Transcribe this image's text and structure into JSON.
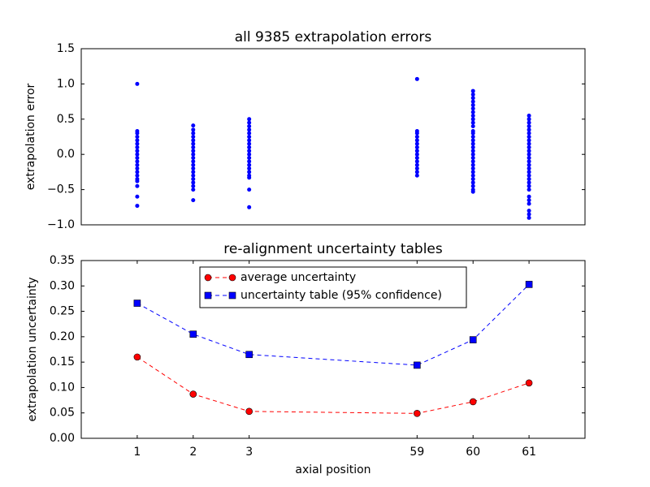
{
  "chart_data": [
    {
      "type": "scatter",
      "title": "all 9385 extrapolation errors",
      "y_label": "extrapolation error",
      "color": "#0000ff",
      "x": [
        1,
        2,
        3,
        6,
        7,
        8
      ],
      "values": [
        [
          1.0,
          0.33,
          0.3,
          0.25,
          0.2,
          0.15,
          0.1,
          0.05,
          0,
          -0.05,
          -0.1,
          -0.15,
          -0.2,
          -0.25,
          -0.3,
          -0.35,
          -0.38,
          -0.45,
          -0.6,
          -0.73
        ],
        [
          0.41,
          0.35,
          0.3,
          0.25,
          0.2,
          0.15,
          0.1,
          0.05,
          0,
          -0.05,
          -0.1,
          -0.15,
          -0.2,
          -0.25,
          -0.3,
          -0.35,
          -0.4,
          -0.45,
          -0.5,
          -0.65
        ],
        [
          0.5,
          0.45,
          0.4,
          0.35,
          0.3,
          0.25,
          0.2,
          0.15,
          0.1,
          0.05,
          0,
          -0.05,
          -0.1,
          -0.15,
          -0.2,
          -0.25,
          -0.3,
          -0.33,
          -0.5,
          -0.75
        ],
        [
          1.07,
          0.33,
          0.3,
          0.25,
          0.2,
          0.15,
          0.1,
          0.05,
          0,
          -0.05,
          -0.1,
          -0.15,
          -0.2,
          -0.25,
          -0.3
        ],
        [
          0.9,
          0.85,
          0.8,
          0.75,
          0.7,
          0.65,
          0.6,
          0.55,
          0.5,
          0.45,
          0.4,
          0.33,
          0.3,
          0.25,
          0.2,
          0.15,
          0.1,
          0.05,
          0,
          -0.05,
          -0.1,
          -0.15,
          -0.2,
          -0.25,
          -0.3,
          -0.35,
          -0.4,
          -0.45,
          -0.5,
          -0.53
        ],
        [
          0.55,
          0.5,
          0.45,
          0.4,
          0.35,
          0.3,
          0.25,
          0.2,
          0.15,
          0.1,
          0.05,
          0,
          -0.05,
          -0.1,
          -0.15,
          -0.2,
          -0.25,
          -0.3,
          -0.35,
          -0.4,
          -0.45,
          -0.5,
          -0.6,
          -0.65,
          -0.7,
          -0.8,
          -0.85,
          -0.9
        ]
      ],
      "xlim": [
        0,
        9
      ],
      "ylim": [
        -1,
        1.5
      ],
      "yticks": [
        {
          "value": -1,
          "label": "−1.0"
        },
        {
          "value": -0.5,
          "label": "−0.5"
        },
        {
          "value": 0,
          "label": "0.0"
        },
        0.5,
        {
          "value": 1,
          "label": "1.0"
        },
        1.5
      ]
    },
    {
      "type": "line",
      "title": "re-alignment uncertainty tables",
      "x_label": "axial position",
      "y_label": "extrapolation uncertainty",
      "x": [
        1,
        2,
        3,
        6,
        7,
        8
      ],
      "series": [
        {
          "name": "average uncertainty",
          "color": "#ff0000",
          "marker": "circle",
          "values": [
            0.16,
            0.087,
            0.053,
            0.049,
            0.072,
            0.109
          ]
        },
        {
          "name": "uncertainty table (95% confidence)",
          "color": "#0000ff",
          "marker": "square",
          "values": [
            0.266,
            0.205,
            0.165,
            0.144,
            0.194,
            0.303
          ]
        }
      ],
      "xlim": [
        0,
        9
      ],
      "ylim": [
        0,
        0.35
      ],
      "xticks": [
        1,
        2,
        3,
        {
          "value": 6,
          "label": "59"
        },
        {
          "value": 7,
          "label": "60"
        },
        {
          "value": 8,
          "label": "61"
        }
      ],
      "yticks": [
        {
          "value": 0,
          "label": "0.00"
        },
        {
          "value": 0.05,
          "label": "0.05"
        },
        {
          "value": 0.1,
          "label": "0.10"
        },
        {
          "value": 0.15,
          "label": "0.15"
        },
        {
          "value": 0.2,
          "label": "0.20"
        },
        {
          "value": 0.25,
          "label": "0.25"
        },
        {
          "value": 0.3,
          "label": "0.30"
        },
        {
          "value": 0.35,
          "label": "0.35"
        }
      ],
      "legend": "upper center"
    }
  ]
}
